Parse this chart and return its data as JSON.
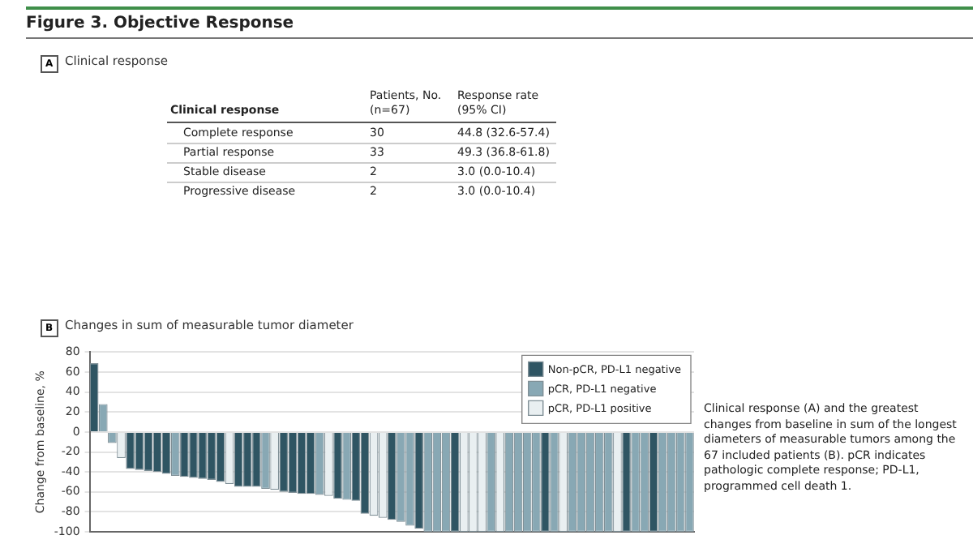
{
  "chart_data": [
    {
      "type": "other",
      "title": "Figure 3. Objective Response",
      "subtitle": "Clinical response",
      "annotations": [
        "A",
        "Clinical response",
        "Patients, No. (n=67)",
        "Response rate (95% CI)",
        "Complete response",
        "30",
        "44.8 (32.6-57.4)",
        "Partial response",
        "33",
        "49.3 (36.8-61.8)",
        "Stable disease",
        "2",
        "3.0 (0.0-10.4)",
        "Progressive disease",
        "2",
        "3.0 (0.0-10.4)"
      ]
    },
    {
      "type": "bar",
      "title": "Changes in sum of measurable tumor diameter",
      "ylabel": "Change from baseline, %",
      "stacked": true,
      "categories": [
        null,
        null,
        null,
        null,
        null,
        null,
        null,
        null,
        null,
        null,
        null,
        null,
        null,
        null,
        null,
        null,
        null,
        null,
        null,
        null,
        null,
        null,
        null,
        null,
        null,
        null,
        null,
        null,
        null,
        null,
        null,
        null,
        null,
        null,
        null,
        null,
        null,
        null,
        null,
        null,
        null,
        null,
        null,
        null,
        null,
        null,
        null,
        null,
        null,
        null,
        null,
        null,
        null,
        null,
        null,
        null,
        null,
        null,
        null,
        null,
        null,
        null,
        null,
        null,
        null,
        null,
        null
      ],
      "series": [
        {
          "name": "Non-pCR, PD-L1 negative",
          "color": "#2f5563",
          "values": [
            69,
            null,
            null,
            null,
            -37,
            -38,
            -39,
            -40,
            -42,
            null,
            -45,
            -46,
            -47,
            -48,
            -50,
            null,
            -55,
            -55,
            -55,
            null,
            null,
            -60,
            -61,
            -62,
            -62,
            null,
            null,
            -67,
            null,
            -69,
            -82,
            null,
            null,
            -88,
            null,
            null,
            -97,
            null,
            null,
            null,
            -100,
            null,
            null,
            null,
            null,
            null,
            null,
            null,
            null,
            null,
            -100,
            null,
            null,
            null,
            null,
            null,
            null,
            null,
            null,
            -100,
            null,
            null,
            -100,
            null,
            null,
            null,
            null
          ]
        },
        {
          "name": "pCR, PD-L1 negative",
          "color": "#88a8b4",
          "values": [
            null,
            28,
            -11,
            null,
            null,
            null,
            null,
            null,
            null,
            -44,
            null,
            null,
            null,
            null,
            null,
            null,
            null,
            null,
            null,
            -57,
            null,
            null,
            null,
            null,
            null,
            -63,
            null,
            null,
            -68,
            null,
            null,
            null,
            null,
            null,
            -90,
            -94,
            null,
            -100,
            -100,
            -100,
            null,
            null,
            null,
            null,
            -100,
            null,
            -100,
            -100,
            -100,
            -100,
            null,
            -100,
            null,
            -100,
            -100,
            -100,
            -100,
            -100,
            null,
            null,
            -100,
            -100,
            null,
            -100,
            -100,
            -100,
            -100
          ]
        },
        {
          "name": "pCR, PD-L1 positive",
          "color": "#e9eff1",
          "values": [
            null,
            null,
            null,
            -26,
            null,
            null,
            null,
            null,
            null,
            null,
            null,
            null,
            null,
            null,
            null,
            -52,
            null,
            null,
            null,
            null,
            -58,
            null,
            null,
            null,
            null,
            null,
            -64,
            null,
            null,
            null,
            null,
            -84,
            -86,
            null,
            null,
            null,
            null,
            null,
            null,
            null,
            null,
            -100,
            -100,
            -100,
            null,
            -100,
            null,
            null,
            null,
            null,
            null,
            null,
            -100,
            null,
            null,
            null,
            null,
            null,
            -100,
            null,
            null,
            null,
            null,
            null,
            null,
            null,
            null
          ]
        }
      ],
      "ylim": [
        -100,
        80
      ],
      "yticks": [
        -100,
        -80,
        -60,
        -40,
        -20,
        0,
        20,
        40,
        60,
        80
      ],
      "grid": "y",
      "legend": "top right",
      "tick_labels": "y",
      "annotations": [
        "B",
        "Clinical response (A) and the greatest changes from baseline in sum of the longest diameters of measurable tumors among the 67 included patients (B). pCR indicates pathologic complete response; PD-L1, programmed cell death 1."
      ]
    }
  ]
}
